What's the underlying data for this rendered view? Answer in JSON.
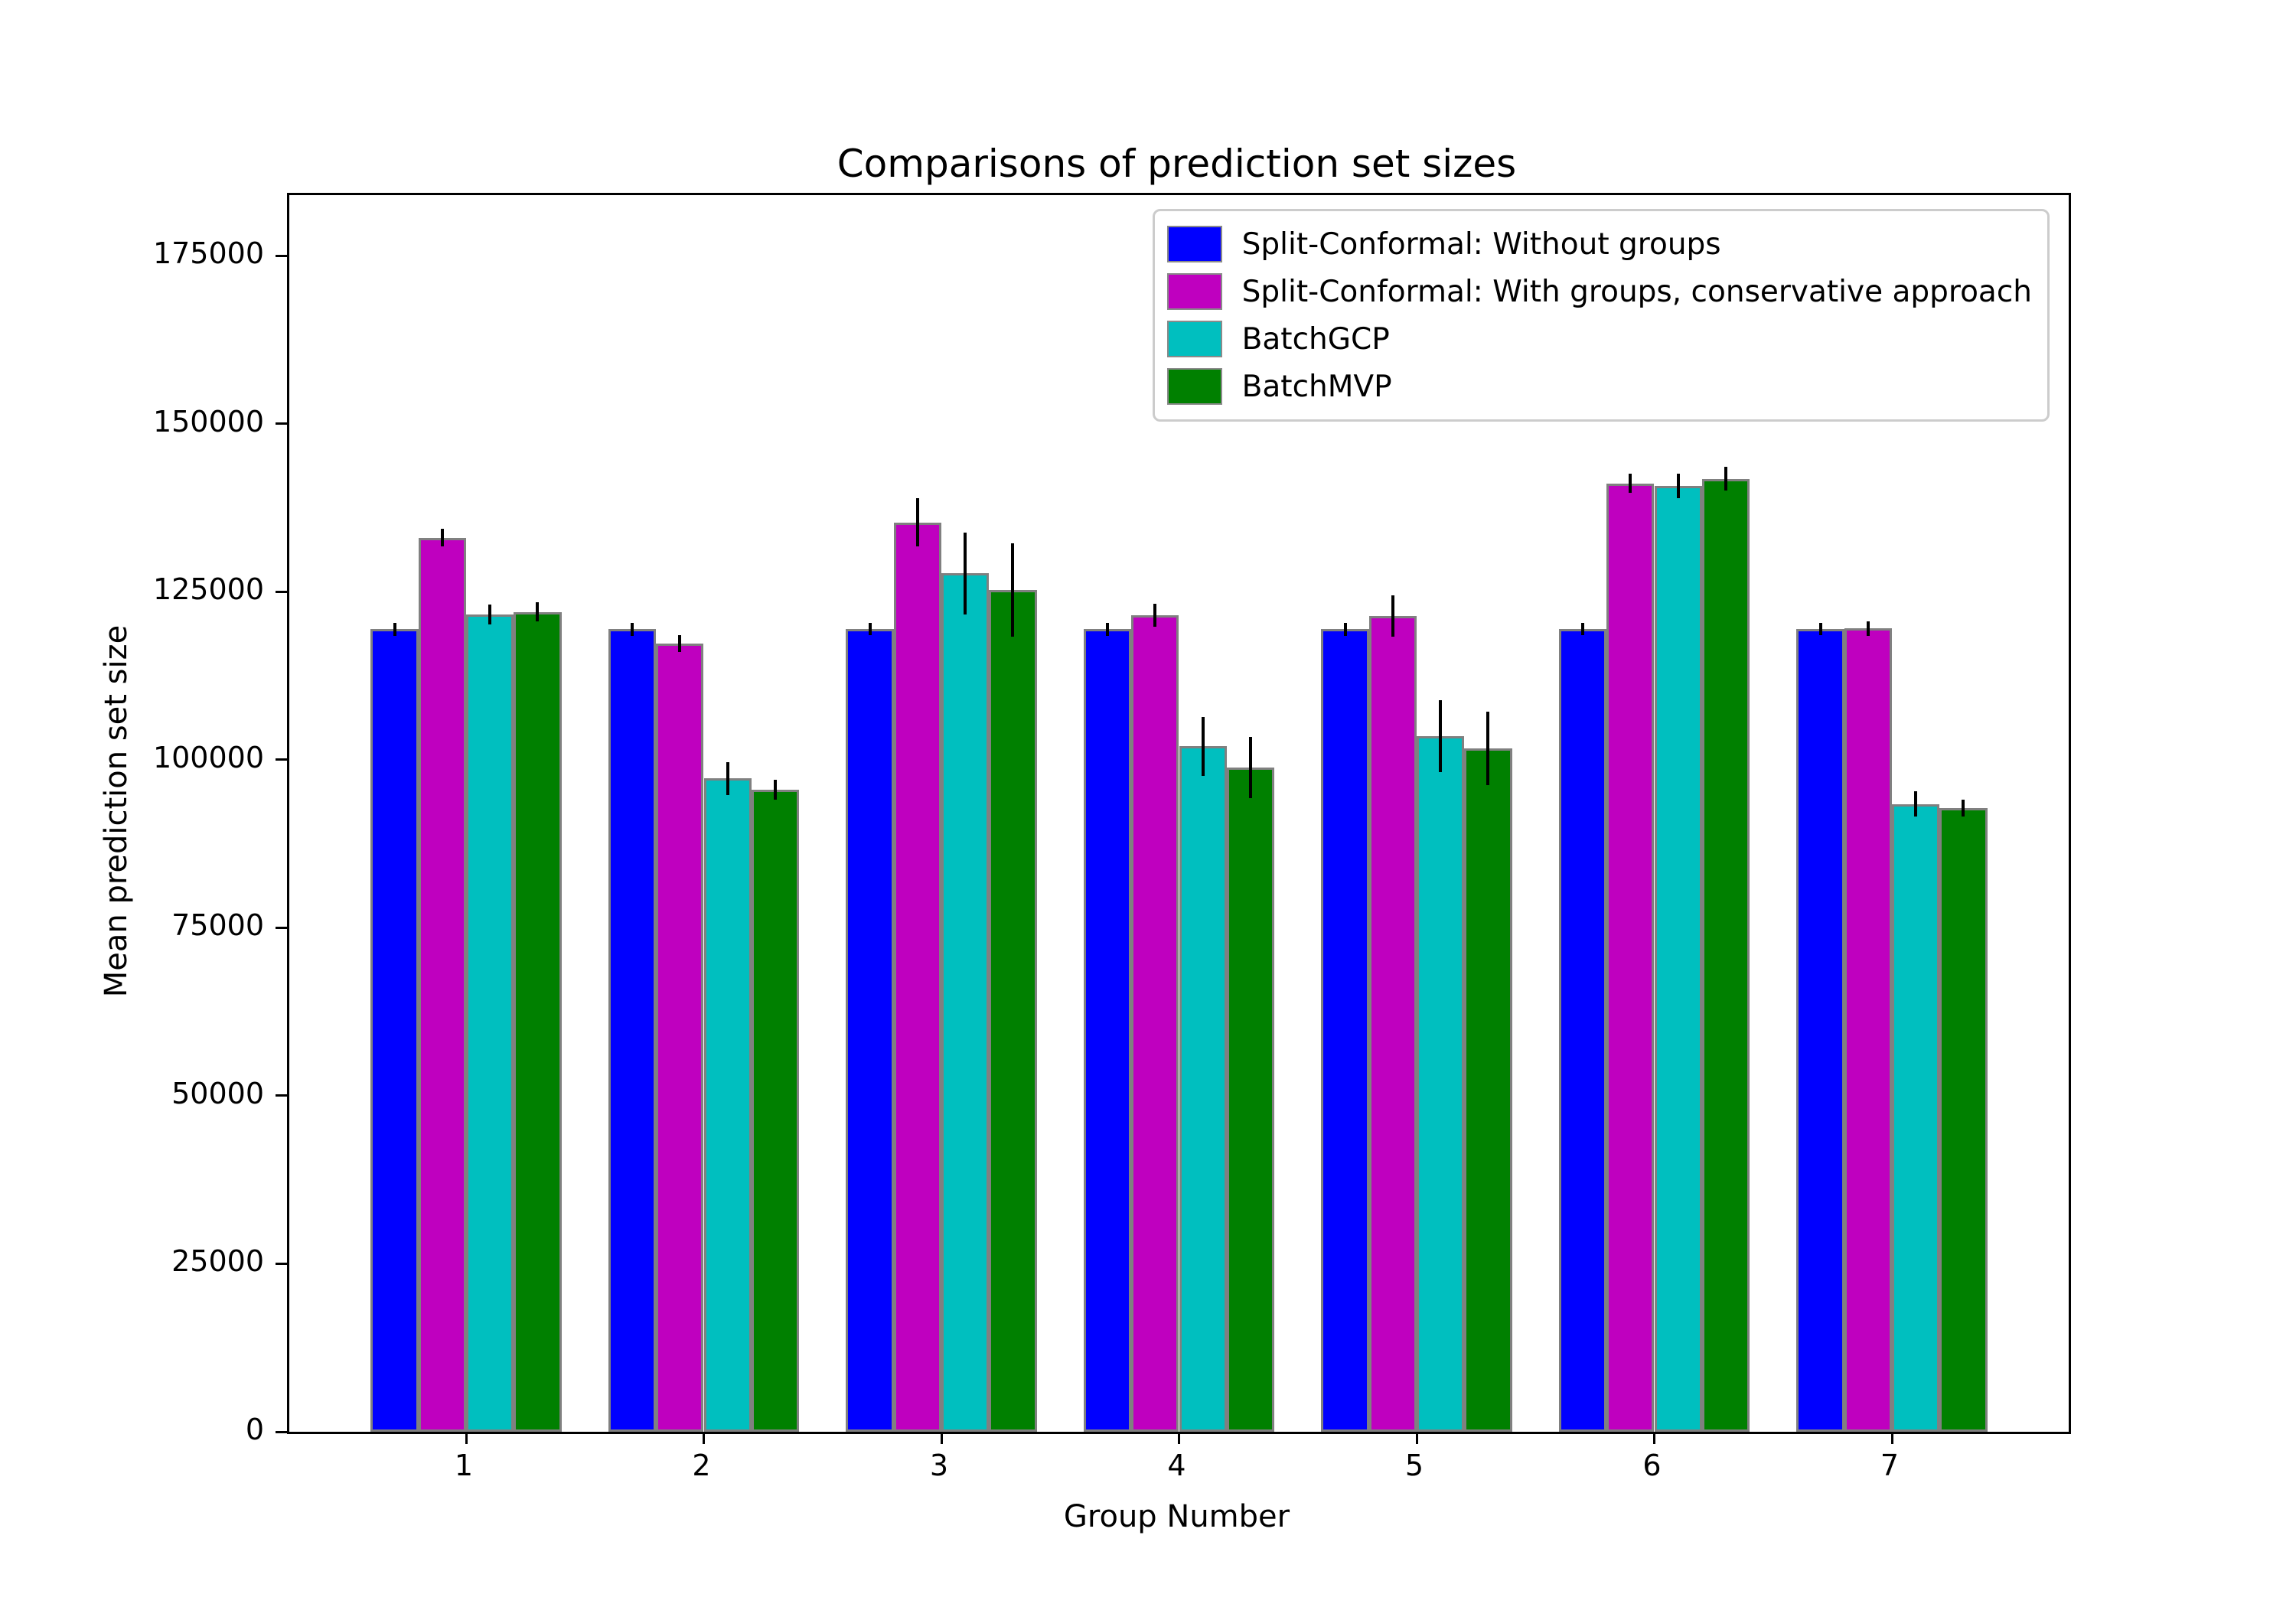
{
  "chart_data": {
    "type": "bar",
    "title": "Comparisons of prediction set sizes",
    "xlabel": "Group Number",
    "ylabel": "Mean prediction set size",
    "categories": [
      "1",
      "2",
      "3",
      "4",
      "5",
      "6",
      "7"
    ],
    "yticks": [
      0,
      25000,
      50000,
      75000,
      100000,
      125000,
      150000,
      175000
    ],
    "ylim": [
      0,
      184000
    ],
    "grid": false,
    "legend_position": "upper right",
    "bar_edge_color": "#808080",
    "error_bar_color": "#000000",
    "series": [
      {
        "name": "Split-Conformal: Without groups",
        "color": "#0000ff",
        "values": [
          119400,
          119400,
          119400,
          119400,
          119400,
          119400,
          119400
        ],
        "errors": [
          1000,
          1000,
          900,
          1000,
          1000,
          900,
          900
        ]
      },
      {
        "name": "Split-Conformal: With groups, conservative approach",
        "color": "#bf00bf",
        "values": [
          133000,
          117300,
          135300,
          121500,
          121400,
          141100,
          119500
        ],
        "errors": [
          1300,
          1250,
          3600,
          1700,
          3100,
          1400,
          1100
        ]
      },
      {
        "name": "BatchGCP",
        "color": "#00bfbf",
        "values": [
          121600,
          97200,
          127700,
          102000,
          103500,
          140700,
          93400
        ],
        "errors": [
          1450,
          2450,
          6050,
          4400,
          5400,
          1800,
          1850
        ]
      },
      {
        "name": "BatchMVP",
        "color": "#008000",
        "values": [
          122000,
          95500,
          125300,
          98800,
          101700,
          141800,
          92800
        ],
        "errors": [
          1450,
          1500,
          6950,
          4550,
          5500,
          1800,
          1300
        ]
      }
    ]
  }
}
